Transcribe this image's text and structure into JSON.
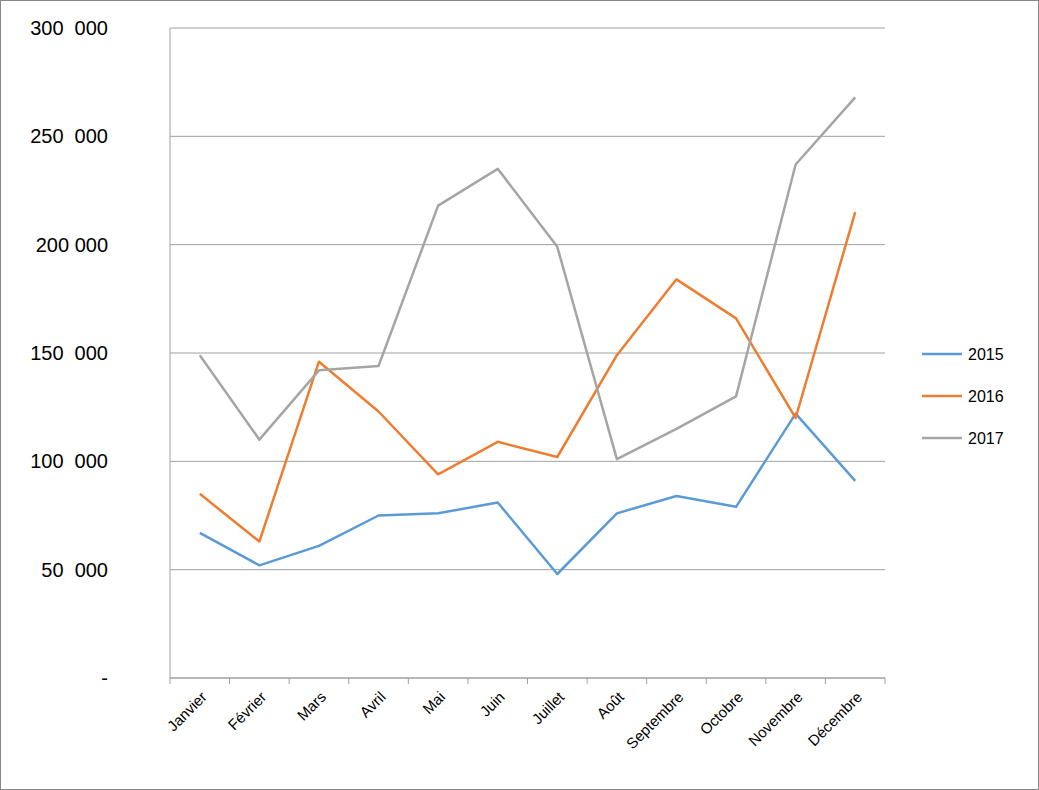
{
  "chart_data": {
    "type": "line",
    "categories": [
      "Janvier",
      "Février",
      "Mars",
      "Avril",
      "Mai",
      "Juin",
      "Juillet",
      "Août",
      "Septembre",
      "Octobre",
      "Novembre",
      "Décembre"
    ],
    "series": [
      {
        "name": "2015",
        "color": "#5b9bd5",
        "values": [
          67000,
          52000,
          61000,
          75000,
          76000,
          81000,
          48000,
          76000,
          84000,
          79000,
          122000,
          91000
        ]
      },
      {
        "name": "2016",
        "color": "#ed7d31",
        "values": [
          85000,
          63000,
          146000,
          123000,
          94000,
          109000,
          102000,
          149000,
          184000,
          166000,
          120000,
          215000
        ]
      },
      {
        "name": "2017",
        "color": "#a5a5a5",
        "values": [
          149000,
          110000,
          142000,
          144000,
          218000,
          235000,
          199000,
          101000,
          115000,
          130000,
          237000,
          268000
        ]
      }
    ],
    "ylim": [
      0,
      300000
    ],
    "yticks": [
      {
        "value": 0,
        "label": "-"
      },
      {
        "value": 50000,
        "label": "50  000"
      },
      {
        "value": 100000,
        "label": "100  000"
      },
      {
        "value": 150000,
        "label": "150  000"
      },
      {
        "value": 200000,
        "label": "200 000"
      },
      {
        "value": 250000,
        "label": "250  000"
      },
      {
        "value": 300000,
        "label": "300  000"
      }
    ],
    "grid": true,
    "legend": "right"
  }
}
